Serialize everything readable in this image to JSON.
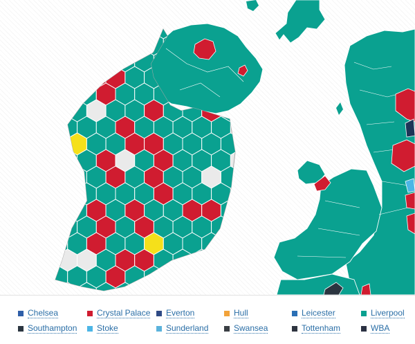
{
  "colors": {
    "teal": "#0aa190",
    "red": "#d01c30",
    "yellow": "#f5e01a",
    "empty": "#eaeaea",
    "navy": "#1d3557",
    "border": "#7fd2c4",
    "hex_stroke": "#ffffff"
  },
  "legend": {
    "items": [
      {
        "label": "Chelsea",
        "color": "#2f5fa8"
      },
      {
        "label": "Crystal Palace",
        "color": "#d01c30"
      },
      {
        "label": "Everton",
        "color": "#2f4a85"
      },
      {
        "label": "Hull",
        "color": "#f2a33a"
      },
      {
        "label": "Leicester",
        "color": "#2a6fb5"
      },
      {
        "label": "Liverpool",
        "color": "#0aa190"
      },
      {
        "label": "Southampton",
        "color": "#2b3540"
      },
      {
        "label": "Stoke",
        "color": "#4cb6e6"
      },
      {
        "label": "Sunderland",
        "color": "#5bb3dc"
      },
      {
        "label": "Swansea",
        "color": "#3a3f44"
      },
      {
        "label": "Tottenham",
        "color": "#2e3440"
      },
      {
        "label": "WBA",
        "color": "#2b3142"
      }
    ]
  }
}
